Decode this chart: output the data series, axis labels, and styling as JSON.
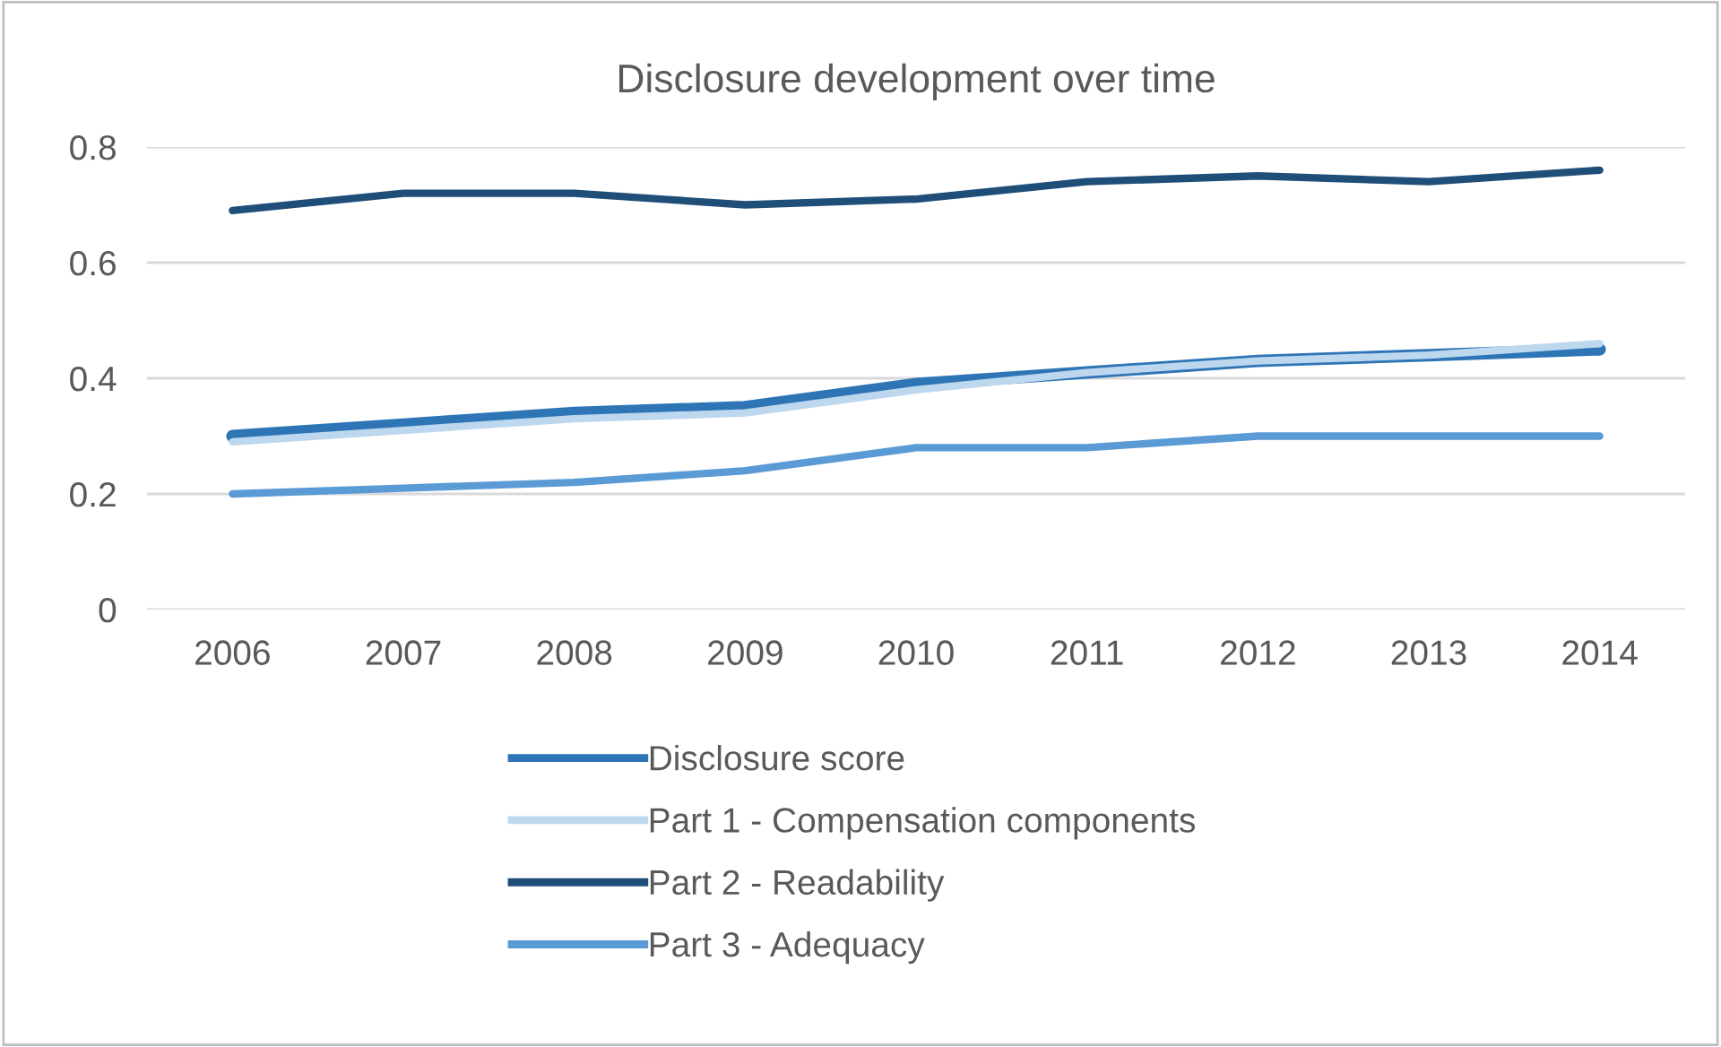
{
  "chart_data": {
    "type": "line",
    "title": "Disclosure development over time",
    "categories": [
      "2006",
      "2007",
      "2008",
      "2009",
      "2010",
      "2011",
      "2012",
      "2013",
      "2014"
    ],
    "series": [
      {
        "name": "Disclosure score",
        "color": "#2e75b6",
        "values": [
          0.3,
          0.32,
          0.34,
          0.35,
          0.39,
          0.41,
          0.43,
          0.44,
          0.45
        ]
      },
      {
        "name": "Part 1 - Compensation components",
        "color": "#bdd7ee",
        "values": [
          0.29,
          0.31,
          0.33,
          0.34,
          0.38,
          0.41,
          0.43,
          0.44,
          0.46
        ]
      },
      {
        "name": "Part 2 - Readability",
        "color": "#1f4e79",
        "values": [
          0.69,
          0.72,
          0.72,
          0.7,
          0.71,
          0.74,
          0.75,
          0.74,
          0.76
        ]
      },
      {
        "name": "Part 3 - Adequacy",
        "color": "#5b9bd5",
        "values": [
          0.2,
          0.21,
          0.22,
          0.24,
          0.28,
          0.28,
          0.3,
          0.3,
          0.3
        ]
      }
    ],
    "ylim": [
      0,
      0.8
    ],
    "yticks": [
      {
        "value": 0,
        "label": "0"
      },
      0.2,
      0.4,
      0.6,
      0.8
    ],
    "grid": "y",
    "legend": "bottom",
    "marker": "none",
    "line_style": "solid"
  }
}
